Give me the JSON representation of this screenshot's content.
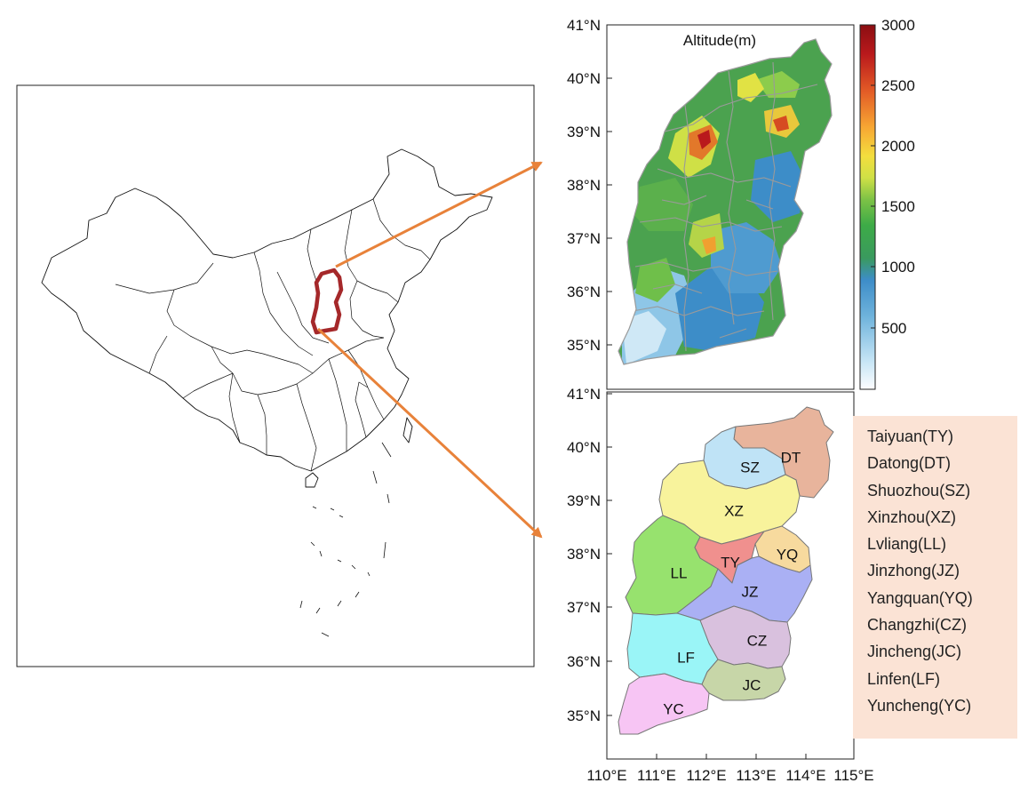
{
  "altitude_panel": {
    "title": "Altitude(m)",
    "colorbar_ticks": [
      "3000",
      "2500",
      "2000",
      "1500",
      "1000",
      "500"
    ],
    "lat_ticks": [
      "41°N",
      "40°N",
      "39°N",
      "38°N",
      "37°N",
      "36°N",
      "35°N"
    ],
    "colormap": [
      "#fdfdff",
      "#c4e4f5",
      "#6fb3dc",
      "#3d8dc8",
      "#3a9a5e",
      "#3dab47",
      "#7cc246",
      "#cfe046",
      "#f3de3e",
      "#f7a633",
      "#e25a26",
      "#b9191c",
      "#8b0e12"
    ]
  },
  "region_panel": {
    "lat_ticks": [
      "41°N",
      "40°N",
      "39°N",
      "38°N",
      "37°N",
      "36°N",
      "35°N"
    ],
    "lon_ticks": [
      "110°E",
      "111°E",
      "112°E",
      "113°E",
      "114°E",
      "115°E"
    ],
    "regions": [
      {
        "code": "DT",
        "color": "#e8b49c"
      },
      {
        "code": "SZ",
        "color": "#bfe3f6"
      },
      {
        "code": "XZ",
        "color": "#f8f39c"
      },
      {
        "code": "LL",
        "color": "#97e26e"
      },
      {
        "code": "TY",
        "color": "#f0908e"
      },
      {
        "code": "YQ",
        "color": "#f7da9e"
      },
      {
        "code": "JZ",
        "color": "#aab0f4"
      },
      {
        "code": "CZ",
        "color": "#d9c1de"
      },
      {
        "code": "LF",
        "color": "#9af5f7"
      },
      {
        "code": "JC",
        "color": "#c7d6a8"
      },
      {
        "code": "YC",
        "color": "#f7c5f4"
      }
    ]
  },
  "legend": {
    "items": [
      "Taiyuan(TY)",
      "Datong(DT)",
      "Shuozhou(SZ)",
      "Xinzhou(XZ)",
      "Lvliang(LL)",
      "Jinzhong(JZ)",
      "Yangquan(YQ)",
      "Changzhi(CZ)",
      "Jincheng(JC)",
      "Linfen(LF)",
      "Yuncheng(YC)"
    ],
    "background": "#fbe3d5"
  },
  "colors": {
    "arrow": "#e8823a",
    "highlight": "#a5282a",
    "county_border": "#9a9a9a"
  }
}
